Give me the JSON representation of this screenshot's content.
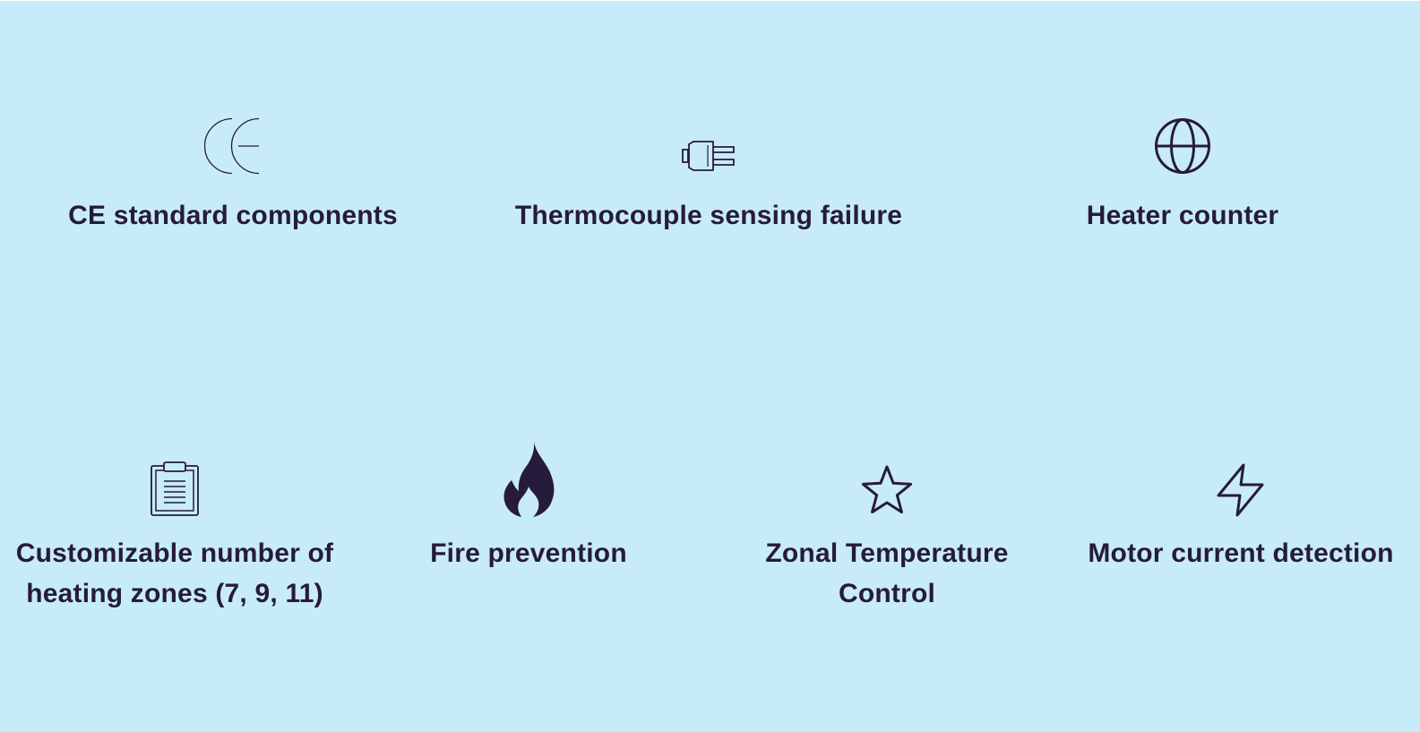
{
  "features": {
    "row1": [
      {
        "label": "CE standard components",
        "icon": "ce-mark-icon"
      },
      {
        "label": "Thermocouple sensing failure",
        "icon": "plug-icon"
      },
      {
        "label": "Heater counter",
        "icon": "globe-icon"
      }
    ],
    "row2": [
      {
        "label": "Customizable number of heating zones (7, 9, 11)",
        "icon": "clipboard-icon"
      },
      {
        "label": "Fire prevention",
        "icon": "flame-icon"
      },
      {
        "label": "Zonal Temperature Control",
        "icon": "star-icon"
      },
      {
        "label": "Motor current detection",
        "icon": "lightning-bolt-icon"
      }
    ]
  },
  "colors": {
    "background": "#c8ebf9",
    "text": "#261b3a"
  }
}
